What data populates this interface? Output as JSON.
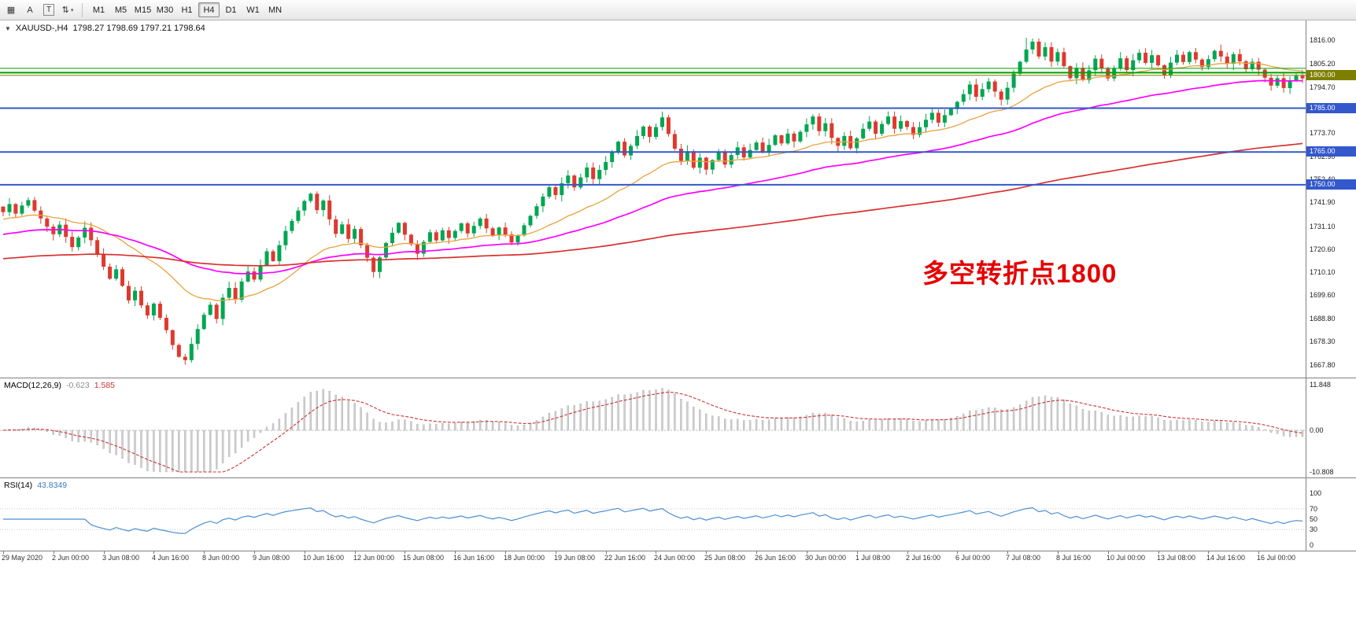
{
  "colors": {
    "bull": "#00a651",
    "bear": "#dd3a2e",
    "ma_fast": "#e8a33d",
    "ma_mid": "#ff00ff",
    "ma_slow": "#d93030",
    "line_blue": "#3358cc",
    "line_green": "#00a000",
    "line_olive": "#7e7e00",
    "badge_blue": "#3358cc",
    "badge_gold": "#7e7e00",
    "macd_hist": "#cfcfcf",
    "macd_signal": "#cc3333",
    "rsi_line": "#4a8fd4",
    "annotation": "#e50000"
  },
  "toolbar": {
    "icons": [
      {
        "name": "chart-grid-icon",
        "glyph": "▦"
      },
      {
        "name": "font-a-icon",
        "glyph": "A"
      },
      {
        "name": "text-label-icon",
        "glyph": "T"
      },
      {
        "name": "cycle-arrows-icon",
        "glyph": "⇅",
        "caret": "▾"
      }
    ],
    "timeframes": [
      "M1",
      "M5",
      "M15",
      "M30",
      "H1",
      "H4",
      "D1",
      "W1",
      "MN"
    ],
    "active_timeframe": "H4"
  },
  "header": {
    "collapse_icon": "▼",
    "symbol": "XAUUSD-,H4",
    "ohlc": "1798.27 1798.69 1797.21 1798.64"
  },
  "annotation": {
    "text": "多空转折点1800"
  },
  "price_scale": {
    "labels": [
      "1816.00",
      "1805.20",
      "1794.70",
      "1773.70",
      "1762.90",
      "1752.40",
      "1741.90",
      "1731.10",
      "1720.60",
      "1710.10",
      "1699.60",
      "1688.80",
      "1678.30",
      "1667.80"
    ],
    "badges": [
      {
        "label": "1800.00",
        "value": 1800.0,
        "color_key": "badge_gold"
      },
      {
        "label": "1785.00",
        "value": 1785.0,
        "color_key": "badge_blue"
      },
      {
        "label": "1765.00",
        "value": 1765.0,
        "color_key": "badge_blue"
      },
      {
        "label": "1750.00",
        "value": 1750.0,
        "color_key": "badge_blue"
      }
    ]
  },
  "chart_data": {
    "type": "candlestick",
    "symbol": "XAUUSD-",
    "timeframe": "H4",
    "ohlc_display": {
      "open": "1798.27",
      "high": "1798.69",
      "low": "1797.21",
      "close": "1798.64"
    },
    "price_range": [
      1663,
      1824
    ],
    "closes": [
      1737.5,
      1741.2,
      1736.8,
      1740.5,
      1743.0,
      1738.2,
      1734.6,
      1730.9,
      1727.4,
      1731.8,
      1726.2,
      1721.5,
      1725.9,
      1730.4,
      1724.7,
      1718.3,
      1712.6,
      1707.1,
      1711.4,
      1703.8,
      1697.2,
      1701.6,
      1694.9,
      1690.3,
      1695.7,
      1689.2,
      1683.6,
      1676.8,
      1671.4,
      1669.9,
      1677.3,
      1684.1,
      1690.6,
      1695.2,
      1688.7,
      1698.4,
      1702.9,
      1697.5,
      1705.8,
      1710.4,
      1706.7,
      1713.2,
      1719.6,
      1715.1,
      1722.4,
      1728.9,
      1733.5,
      1738.2,
      1742.6,
      1745.9,
      1738.4,
      1742.8,
      1734.2,
      1727.6,
      1731.9,
      1725.3,
      1729.8,
      1722.4,
      1716.7,
      1710.2,
      1716.8,
      1723.4,
      1728.1,
      1732.6,
      1727.2,
      1722.8,
      1718.5,
      1723.9,
      1728.3,
      1724.6,
      1729.2,
      1725.7,
      1728.9,
      1732.4,
      1727.8,
      1731.2,
      1734.6,
      1730.1,
      1726.8,
      1730.5,
      1727.3,
      1723.6,
      1726.9,
      1731.5,
      1735.8,
      1740.2,
      1744.6,
      1748.9,
      1745.3,
      1750.7,
      1754.2,
      1748.8,
      1753.4,
      1757.9,
      1752.6,
      1756.8,
      1760.4,
      1765.2,
      1769.7,
      1763.4,
      1767.8,
      1772.3,
      1776.6,
      1771.9,
      1776.4,
      1780.8,
      1773.2,
      1766.5,
      1760.9,
      1765.3,
      1757.8,
      1762.4,
      1756.9,
      1761.3,
      1764.8,
      1759.2,
      1763.6,
      1767.1,
      1762.5,
      1765.9,
      1769.3,
      1764.7,
      1768.2,
      1772.6,
      1768.9,
      1773.4,
      1769.8,
      1774.2,
      1777.6,
      1781.2,
      1774.5,
      1778.1,
      1771.4,
      1767.8,
      1772.3,
      1766.7,
      1771.2,
      1775.6,
      1778.9,
      1773.3,
      1777.8,
      1781.2,
      1775.6,
      1779.1,
      1776.4,
      1772.8,
      1776.3,
      1779.7,
      1782.9,
      1778.4,
      1781.8,
      1784.6,
      1787.9,
      1791.4,
      1795.8,
      1790.2,
      1793.7,
      1797.2,
      1792.6,
      1788.9,
      1794.3,
      1800.7,
      1806.2,
      1811.8,
      1815.4,
      1808.6,
      1812.9,
      1806.3,
      1810.6,
      1804.2,
      1798.7,
      1803.4,
      1797.8,
      1802.3,
      1807.6,
      1803.1,
      1798.6,
      1803.2,
      1807.8,
      1802.4,
      1806.9,
      1810.3,
      1805.7,
      1809.2,
      1804.6,
      1800.2,
      1805.8,
      1809.4,
      1806.1,
      1810.6,
      1807.2,
      1803.8,
      1807.4,
      1811.2,
      1808.6,
      1805.3,
      1809.7,
      1806.4,
      1802.8,
      1806.2,
      1802.6,
      1798.9,
      1795.3,
      1798.7,
      1794.2,
      1797.6,
      1799.8,
      1798.6
    ],
    "wick_overrides": {
      "29": {
        "low": 1667.8
      },
      "163": {
        "high": 1817.2
      },
      "164": {
        "high": 1816.8
      }
    },
    "moving_averages": [
      {
        "name": "fast",
        "period": 24,
        "seed": 1734,
        "width": 1.3,
        "color_key": "ma_fast"
      },
      {
        "name": "mid",
        "period": 60,
        "seed": 1727,
        "width": 1.7,
        "color_key": "ma_mid"
      },
      {
        "name": "slow",
        "period": 200,
        "seed": 1716,
        "width": 1.7,
        "color_key": "ma_slow"
      }
    ],
    "hlines": [
      {
        "value": 1803.2,
        "width": 1,
        "color_key": "line_green"
      },
      {
        "value": 1801.2,
        "width": 2,
        "color_key": "line_green"
      },
      {
        "value": 1800.0,
        "width": 1,
        "color_key": "line_olive"
      },
      {
        "value": 1785.0,
        "width": 2,
        "color_key": "line_blue"
      },
      {
        "value": 1765.0,
        "width": 2,
        "color_key": "line_blue"
      },
      {
        "value": 1750.0,
        "width": 2,
        "color_key": "line_blue"
      }
    ],
    "macd": {
      "label": "MACD(12,26,9)",
      "value_hist": "-0.623",
      "value_signal": "1.585",
      "fast": 12,
      "slow": 26,
      "signal": 9,
      "scale_max": "11.848",
      "scale_zero": "0.00",
      "scale_min": "-10.808"
    },
    "rsi": {
      "label": "RSI(14)",
      "value": "43.8349",
      "period": 14,
      "levels": [
        70,
        30
      ],
      "scale_labels": [
        "100",
        "70",
        "50",
        "30",
        "0"
      ]
    },
    "time_labels": [
      "29 May 2020",
      "2 Jun 00:00",
      "3 Jun 08:00",
      "4 Jun 16:00",
      "8 Jun 00:00",
      "9 Jun 08:00",
      "10 Jun 16:00",
      "12 Jun 00:00",
      "15 Jun 08:00",
      "16 Jun 16:00",
      "18 Jun 00:00",
      "19 Jun 08:00",
      "22 Jun 16:00",
      "24 Jun 00:00",
      "25 Jun 08:00",
      "26 Jun 16:00",
      "30 Jun 00:00",
      "1 Jul 08:00",
      "2 Jul 16:00",
      "6 Jul 00:00",
      "7 Jul 08:00",
      "8 Jul 16:00",
      "10 Jul 00:00",
      "13 Jul 08:00",
      "14 Jul 16:00",
      "16 Jul 00:00"
    ]
  }
}
